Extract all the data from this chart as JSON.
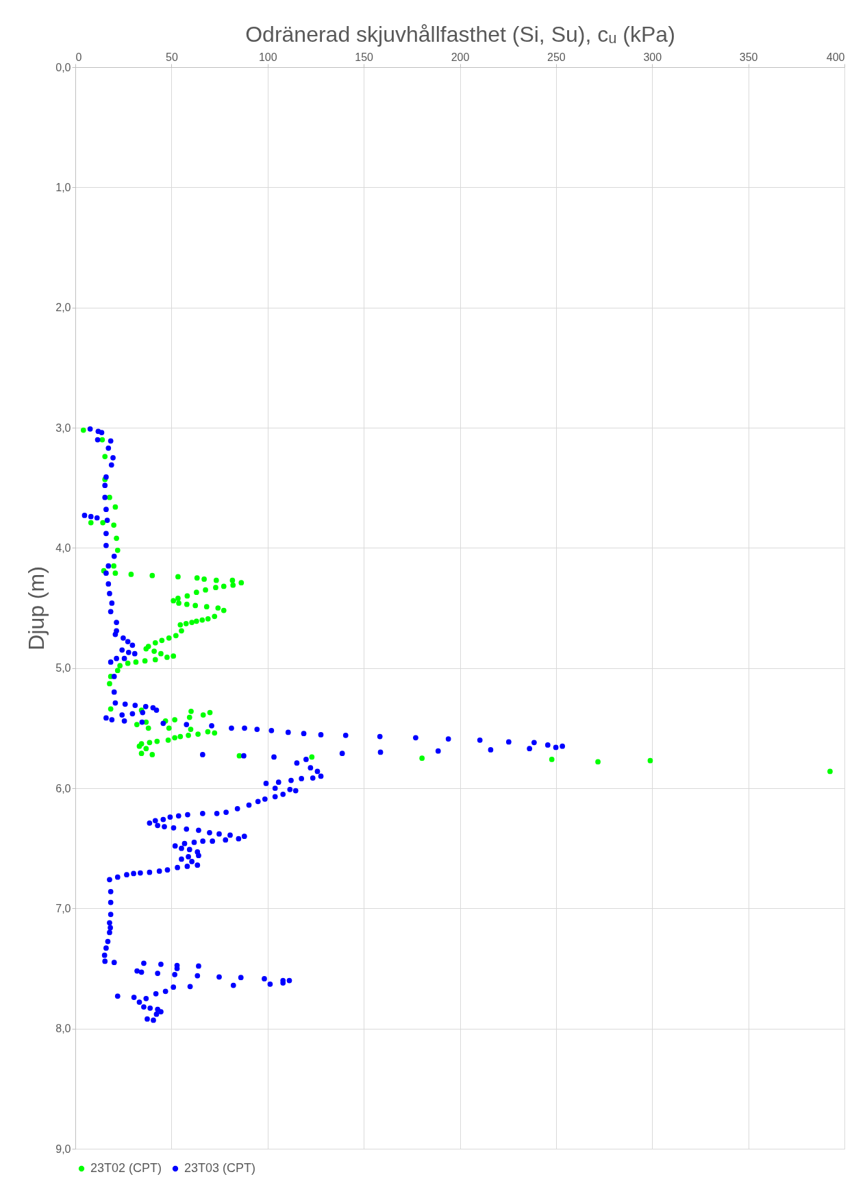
{
  "chart_data": {
    "type": "scatter",
    "xlabel": "Odränerad skjuvhållfasthet (Si, Su), cᵤ (kPa)",
    "ylabel": "Djup (m)",
    "xlim": [
      0,
      400
    ],
    "xticks": [
      0,
      50,
      100,
      150,
      200,
      250,
      300,
      350,
      400
    ],
    "ylim": [
      9,
      0
    ],
    "yticks": [
      {
        "value": 0,
        "label": "0,0"
      },
      {
        "value": 1,
        "label": "1,0"
      },
      {
        "value": 2,
        "label": "2,0"
      },
      {
        "value": 3,
        "label": "3,0"
      },
      {
        "value": 4,
        "label": "4,0"
      },
      {
        "value": 5,
        "label": "5,0"
      },
      {
        "value": 6,
        "label": "6,0"
      },
      {
        "value": 7,
        "label": "7,0"
      },
      {
        "value": 8,
        "label": "8,0"
      },
      {
        "value": 9,
        "label": "9,0"
      }
    ],
    "grid": true,
    "legend": "bottom",
    "marker": "circle",
    "series": [
      {
        "name": "23T02 (CPT)",
        "color": "#00ff00",
        "x": [
          4.2,
          14,
          15.4,
          15.4,
          17.8,
          20.8,
          20,
          21.4,
          22,
          20,
          14.8,
          8.1,
          14.3,
          20.8,
          29,
          40,
          53.4,
          63.3,
          67,
          73.3,
          81.7,
          86.3,
          82,
          77.2,
          73,
          67.7,
          63,
          58.2,
          53.4,
          51,
          53.8,
          58,
          62.4,
          68.3,
          74.2,
          77.2,
          72.4,
          69,
          66,
          63,
          60.6,
          57.6,
          54.6,
          55.2,
          52.3,
          48.7,
          45,
          41.6,
          38,
          36.8,
          41,
          44.5,
          51,
          47.7,
          41.6,
          36.2,
          31.5,
          27.3,
          23.2,
          22,
          18.4,
          17.8,
          18.4,
          34.4,
          60.2,
          70,
          66.5,
          59.4,
          51.7,
          46.9,
          32,
          36.8,
          38,
          48.7,
          60,
          68.9,
          72.4,
          63.8,
          58.8,
          54.6,
          51.7,
          48.3,
          42.5,
          38.6,
          34.4,
          33.3,
          36.8,
          34.4,
          40,
          85.3,
          123,
          180.3,
          247.8,
          271.8,
          299,
          392.5
        ],
        "values": [
          3.02,
          3.1,
          3.24,
          3.43,
          3.58,
          3.66,
          3.81,
          3.92,
          4.02,
          4.15,
          4.19,
          3.79,
          3.79,
          4.21,
          4.22,
          4.23,
          4.24,
          4.25,
          4.26,
          4.27,
          4.27,
          4.29,
          4.31,
          4.32,
          4.33,
          4.35,
          4.37,
          4.4,
          4.42,
          4.44,
          4.46,
          4.47,
          4.48,
          4.49,
          4.5,
          4.52,
          4.57,
          4.59,
          4.6,
          4.61,
          4.62,
          4.63,
          4.64,
          4.69,
          4.73,
          4.75,
          4.77,
          4.79,
          4.82,
          4.84,
          4.86,
          4.88,
          4.9,
          4.91,
          4.93,
          4.94,
          4.95,
          4.96,
          4.98,
          5.02,
          5.07,
          5.13,
          5.34,
          5.35,
          5.36,
          5.37,
          5.39,
          5.41,
          5.43,
          5.44,
          5.47,
          5.45,
          5.5,
          5.5,
          5.51,
          5.53,
          5.54,
          5.55,
          5.56,
          5.57,
          5.58,
          5.6,
          5.61,
          5.62,
          5.63,
          5.65,
          5.67,
          5.71,
          5.72,
          5.73,
          5.74,
          5.75,
          5.76,
          5.78,
          5.77,
          5.86
        ]
      },
      {
        "name": "23T03 (CPT)",
        "color": "#0000ff",
        "x": [
          7.7,
          11.9,
          13.7,
          11.6,
          18.4,
          17.2,
          19.6,
          18.8,
          16,
          15.4,
          15.4,
          16,
          16.6,
          16,
          16,
          20.2,
          17.2,
          16,
          17.2,
          17.8,
          19,
          18.4,
          21.4,
          21.4,
          4.8,
          8.1,
          11.3,
          20.8,
          24.9,
          27.3,
          29.7,
          24.3,
          27.7,
          30.9,
          25.5,
          21.4,
          18.4,
          20.2,
          20.2,
          20.8,
          25.9,
          31.1,
          36.6,
          40.4,
          42.2,
          35,
          29.7,
          24.3,
          16,
          19,
          25.5,
          34.7,
          45.7,
          57.8,
          70.9,
          81.2,
          88,
          94.5,
          102,
          110.7,
          118.8,
          127.7,
          140.6,
          158.4,
          177,
          194,
          210.4,
          225.4,
          238.6,
          245.7,
          249.9,
          253.3,
          236.2,
          216,
          188.7,
          158.7,
          138.8,
          103.3,
          87.6,
          66.2,
          115.2,
          120,
          122.3,
          125.9,
          127.7,
          123.5,
          117.6,
          112.2,
          105.7,
          99.2,
          103.9,
          111.6,
          114.6,
          108,
          103.9,
          98.6,
          95,
          90.3,
          84.3,
          78.4,
          73.6,
          66.2,
          58.4,
          53.7,
          49.3,
          45.7,
          41.6,
          38.6,
          42.8,
          46.3,
          51.1,
          57.8,
          64.1,
          69.8,
          74.8,
          80.5,
          87.9,
          84.9,
          78.1,
          71.3,
          66.3,
          61.8,
          56.8,
          51.9,
          55.2,
          59.4,
          63.5,
          64.1,
          58.8,
          55.2,
          60.6,
          63.5,
          58.2,
          53.1,
          47.9,
          43.7,
          38.6,
          33.8,
          30.3,
          26.7,
          22,
          17.8,
          18.4,
          18.4,
          18.4,
          18.2,
          17.8,
          17.8,
          16.9,
          16,
          15.2,
          15.4,
          20.2,
          35.6,
          44.5,
          52.9,
          64.1,
          52.9,
          32.1,
          34.4,
          42.8,
          51.7,
          63.5,
          74.8,
          86.1,
          98.3,
          108,
          111.3,
          108,
          101.3,
          82.2,
          59.7,
          51,
          46.9,
          41.9,
          22,
          30.5,
          36.8,
          33.3,
          35.6,
          38.9,
          42.8,
          44.5,
          42.2,
          37.4,
          40.6
        ],
        "values": [
          3.01,
          3.03,
          3.04,
          3.1,
          3.11,
          3.17,
          3.25,
          3.31,
          3.41,
          3.48,
          3.58,
          3.68,
          3.77,
          3.88,
          3.98,
          4.07,
          4.15,
          4.21,
          4.3,
          4.38,
          4.46,
          4.53,
          4.62,
          4.69,
          3.73,
          3.74,
          3.75,
          4.72,
          4.75,
          4.78,
          4.81,
          4.85,
          4.87,
          4.88,
          4.92,
          4.92,
          4.95,
          5.07,
          5.2,
          5.29,
          5.3,
          5.31,
          5.32,
          5.33,
          5.35,
          5.37,
          5.38,
          5.39,
          5.415,
          5.43,
          5.44,
          5.45,
          5.46,
          5.47,
          5.48,
          5.5,
          5.5,
          5.51,
          5.52,
          5.535,
          5.545,
          5.555,
          5.56,
          5.57,
          5.58,
          5.59,
          5.6,
          5.615,
          5.62,
          5.64,
          5.66,
          5.65,
          5.67,
          5.68,
          5.69,
          5.7,
          5.71,
          5.74,
          5.73,
          5.72,
          5.79,
          5.76,
          5.83,
          5.86,
          5.9,
          5.915,
          5.92,
          5.935,
          5.95,
          5.96,
          6.0,
          6.01,
          6.02,
          6.05,
          6.07,
          6.09,
          6.11,
          6.14,
          6.17,
          6.2,
          6.21,
          6.21,
          6.22,
          6.23,
          6.24,
          6.26,
          6.27,
          6.29,
          6.31,
          6.32,
          6.33,
          6.34,
          6.35,
          6.37,
          6.38,
          6.39,
          6.4,
          6.42,
          6.43,
          6.44,
          6.44,
          6.45,
          6.46,
          6.48,
          6.5,
          6.51,
          6.53,
          6.56,
          6.57,
          6.59,
          6.61,
          6.64,
          6.65,
          6.66,
          6.68,
          6.69,
          6.7,
          6.705,
          6.71,
          6.72,
          6.74,
          6.76,
          6.86,
          6.95,
          7.05,
          7.16,
          7.12,
          7.2,
          7.275,
          7.33,
          7.39,
          7.44,
          7.45,
          7.456,
          7.465,
          7.475,
          7.48,
          7.5,
          7.52,
          7.53,
          7.54,
          7.55,
          7.56,
          7.57,
          7.575,
          7.585,
          7.6,
          7.6,
          7.62,
          7.63,
          7.64,
          7.65,
          7.655,
          7.69,
          7.71,
          7.73,
          7.74,
          7.75,
          7.78,
          7.82,
          7.83,
          7.84,
          7.86,
          7.88,
          7.92,
          7.93
        ]
      }
    ]
  }
}
